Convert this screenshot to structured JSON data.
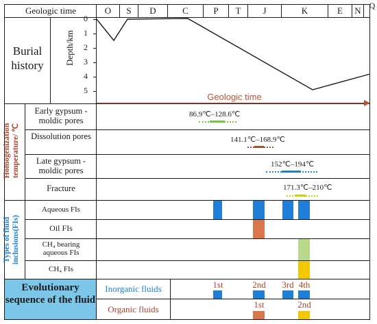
{
  "header": {
    "geologic_time_label": "Geologic time",
    "periods": [
      "O",
      "S",
      "D",
      "C",
      "P",
      "T",
      "J",
      "K",
      "E",
      "N",
      "Q"
    ]
  },
  "burial": {
    "title": "Burial history",
    "depth_axis_label": "Depth/km",
    "depth_ticks": [
      "0",
      "1",
      "2",
      "3",
      "4",
      "5"
    ],
    "time_arrow_label": "Geologic time",
    "curve_color": "#1a1a1a",
    "arrow_color": "#b5533a"
  },
  "homogenization": {
    "side_label": "Homogenization temperature/ ℃",
    "side_color": "#a9442f",
    "rows": [
      {
        "label": "Early gypsum -moldic pores",
        "range": "86.9℃–128.6℃",
        "color": "#7cc242"
      },
      {
        "label": "Dissolution pores",
        "range": "141.1℃–168.9℃",
        "color": "#a0522d"
      },
      {
        "label": "Late gypsum -moldic pores",
        "range": "152℃–194℃",
        "color": "#1f7fd6"
      },
      {
        "label": "Fracture",
        "range": "171.3℃–210℃",
        "color": "#c8d400"
      }
    ]
  },
  "inclusions": {
    "side_label": "Types of fluid inclusions(FIs)",
    "side_color": "#1f7fd6",
    "rows": [
      {
        "label": "Aqueous FIs",
        "color": "#1f7fd6"
      },
      {
        "label": "Oil FIs",
        "color": "#d9764a"
      },
      {
        "label": "CH₄ bearing aqueous FIs",
        "color": "#b9d98a"
      },
      {
        "label": "CH₄  FIs",
        "color": "#f2c800"
      }
    ]
  },
  "sequence": {
    "title": "Evolutionary sequence of the fluid",
    "title_bg": "#7cc6ea",
    "inorganic_label": "Inorganic fluids",
    "inorganic_color": "#1f7fd6",
    "organic_label": "Organic fluids",
    "organic_color": "#a9442f",
    "inorganic_stages": [
      "1st",
      "2nd",
      "3rd",
      "4th"
    ],
    "organic_stages": [
      "1st",
      "2nd"
    ],
    "inorganic_bar_color": "#1f7fd6",
    "organic_bar_colors": [
      "#d9764a",
      "#f2c800"
    ]
  }
}
